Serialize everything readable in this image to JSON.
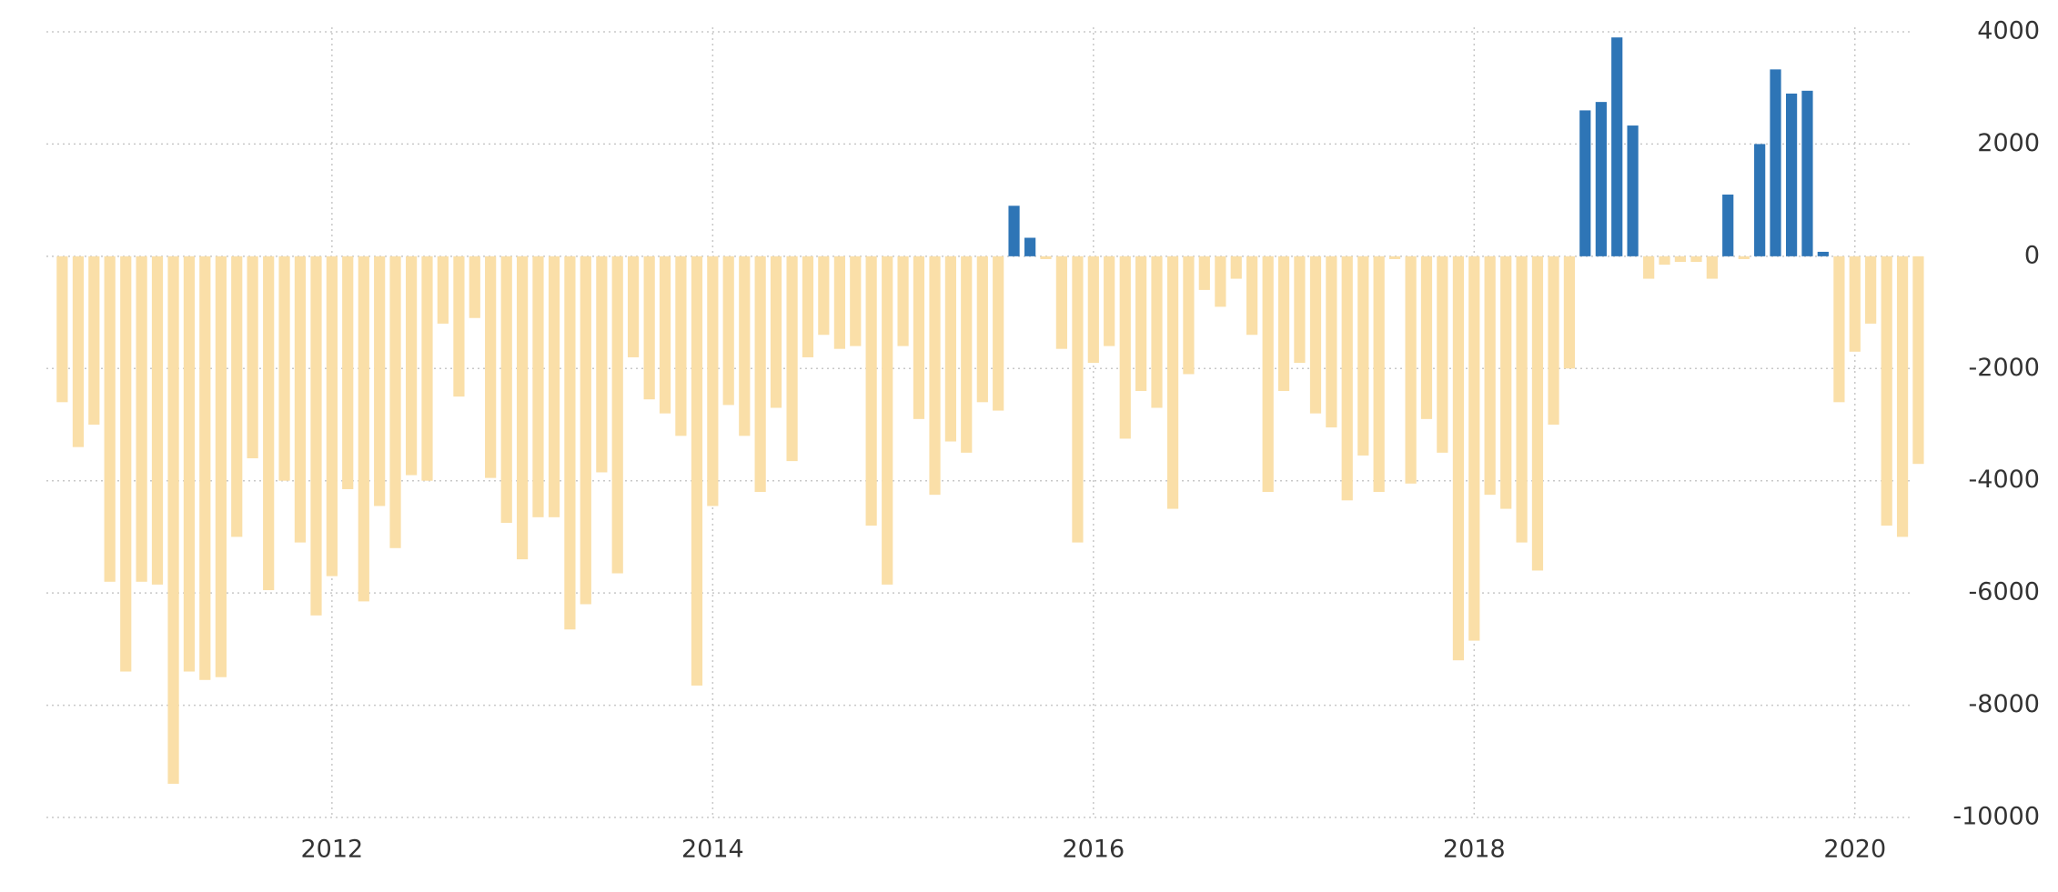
{
  "chart_data": {
    "type": "bar",
    "color": "#2e75b6",
    "negative_color": "#fadfa8",
    "grid": true,
    "xlim": [
      2010.5,
      2020.35
    ],
    "xticks": [
      2012,
      2014,
      2016,
      2018,
      2020
    ],
    "ylim": [
      -10000,
      4000
    ],
    "yticks": [
      4000,
      2000,
      0,
      -2000,
      -4000,
      -6000,
      -8000,
      -10000
    ],
    "x": [
      2010.583,
      2010.667,
      2010.75,
      2010.833,
      2010.917,
      2011.0,
      2011.083,
      2011.167,
      2011.25,
      2011.333,
      2011.417,
      2011.5,
      2011.583,
      2011.667,
      2011.75,
      2011.833,
      2011.917,
      2012.0,
      2012.083,
      2012.167,
      2012.25,
      2012.333,
      2012.417,
      2012.5,
      2012.583,
      2012.667,
      2012.75,
      2012.833,
      2012.917,
      2013.0,
      2013.083,
      2013.167,
      2013.25,
      2013.333,
      2013.417,
      2013.5,
      2013.583,
      2013.667,
      2013.75,
      2013.833,
      2013.917,
      2014.0,
      2014.083,
      2014.167,
      2014.25,
      2014.333,
      2014.417,
      2014.5,
      2014.583,
      2014.667,
      2014.75,
      2014.833,
      2014.917,
      2015.0,
      2015.083,
      2015.167,
      2015.25,
      2015.333,
      2015.417,
      2015.5,
      2015.583,
      2015.667,
      2015.75,
      2015.833,
      2015.917,
      2016.0,
      2016.083,
      2016.167,
      2016.25,
      2016.333,
      2016.417,
      2016.5,
      2016.583,
      2016.667,
      2016.75,
      2016.833,
      2016.917,
      2017.0,
      2017.083,
      2017.167,
      2017.25,
      2017.333,
      2017.417,
      2017.5,
      2017.583,
      2017.667,
      2017.75,
      2017.833,
      2017.917,
      2018.0,
      2018.083,
      2018.167,
      2018.25,
      2018.333,
      2018.417,
      2018.5,
      2018.583,
      2018.667,
      2018.75,
      2018.833,
      2018.917,
      2019.0,
      2019.083,
      2019.167,
      2019.25,
      2019.333,
      2019.417,
      2019.5,
      2019.583,
      2019.667,
      2019.75,
      2019.833,
      2019.917,
      2020.0,
      2020.083,
      2020.167,
      2020.25,
      2020.333
    ],
    "values": [
      -2600,
      -3400,
      -3000,
      -5800,
      -7400,
      -5800,
      -5850,
      -9400,
      -7400,
      -7550,
      -7500,
      -5000,
      -3600,
      -5950,
      -4000,
      -5100,
      -6400,
      -5700,
      -4150,
      -6150,
      -4450,
      -5200,
      -3900,
      -4000,
      -1200,
      -2500,
      -1100,
      -3950,
      -4750,
      -5400,
      -4650,
      -4650,
      -6650,
      -6200,
      -3850,
      -5650,
      -1800,
      -2550,
      -2800,
      -3200,
      -7650,
      -4450,
      -2650,
      -3200,
      -4200,
      -2700,
      -3650,
      -1800,
      -1400,
      -1650,
      -1600,
      -4800,
      -5850,
      -1600,
      -2900,
      -4250,
      -3300,
      -3500,
      -2600,
      -2750,
      900,
      330,
      -50,
      -1650,
      -5100,
      -1900,
      -1600,
      -3250,
      -2400,
      -2700,
      -4500,
      -2100,
      -600,
      -900,
      -400,
      -1400,
      -4200,
      -2400,
      -1900,
      -2800,
      -3050,
      -4350,
      -3550,
      -4200,
      -50,
      -4050,
      -2900,
      -3500,
      -7200,
      -6850,
      -4250,
      -4500,
      -5100,
      -5600,
      -3000,
      -2000,
      2600,
      2750,
      3900,
      2330,
      -400,
      -150,
      -100,
      -100,
      -400,
      1100,
      -50,
      2000,
      3330,
      2900,
      2950,
      80,
      -2600,
      -1700,
      -1200,
      -4800,
      -5000,
      -3700
    ]
  }
}
